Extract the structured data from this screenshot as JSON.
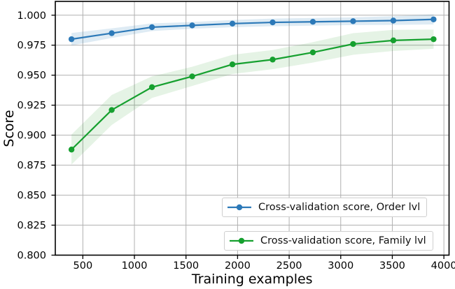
{
  "chart_data": {
    "type": "line",
    "title": "",
    "xlabel": "Training examples",
    "ylabel": "Score",
    "xlim": [
      233,
      4050
    ],
    "ylim": [
      0.8,
      1.0115
    ],
    "grid": true,
    "legend_position": "lower right, two stacked boxes",
    "x": [
      390,
      780,
      1170,
      1560,
      1950,
      2340,
      2730,
      3120,
      3510,
      3900
    ],
    "x_ticks": [
      {
        "value": 500,
        "label": "500"
      },
      {
        "value": 1000,
        "label": "1000"
      },
      {
        "value": 1500,
        "label": "1500"
      },
      {
        "value": 2000,
        "label": "2000"
      },
      {
        "value": 2500,
        "label": "2500"
      },
      {
        "value": 3000,
        "label": "3000"
      },
      {
        "value": 3500,
        "label": "3500"
      },
      {
        "value": 4000,
        "label": "4000"
      }
    ],
    "y_ticks": [
      {
        "value": 0.8,
        "label": "0.800"
      },
      {
        "value": 0.825,
        "label": "0.825"
      },
      {
        "value": 0.85,
        "label": "0.850"
      },
      {
        "value": 0.875,
        "label": "0.875"
      },
      {
        "value": 0.9,
        "label": "0.900"
      },
      {
        "value": 0.925,
        "label": "0.925"
      },
      {
        "value": 0.95,
        "label": "0.950"
      },
      {
        "value": 0.975,
        "label": "0.975"
      },
      {
        "value": 1.0,
        "label": "1.000"
      }
    ],
    "series": [
      {
        "name": "Cross-validation score, Order lvl",
        "color": "#2c79b8",
        "band_color": "#1f77b4",
        "band_opacity": 0.15,
        "marker": "circle",
        "values": [
          0.98,
          0.985,
          0.99,
          0.9915,
          0.993,
          0.994,
          0.9945,
          0.995,
          0.9955,
          0.9965
        ],
        "band_half_width": [
          0.0052,
          0.004,
          0.0032,
          0.0028,
          0.003,
          0.0032,
          0.0032,
          0.0032,
          0.0036,
          0.0042
        ]
      },
      {
        "name": "Cross-validation score, Family lvl",
        "color": "#16a02f",
        "band_color": "#2ca02c",
        "band_opacity": 0.12,
        "marker": "circle",
        "values": [
          0.888,
          0.921,
          0.94,
          0.949,
          0.959,
          0.963,
          0.969,
          0.976,
          0.979,
          0.98
        ],
        "band_half_width": [
          0.0125,
          0.0125,
          0.009,
          0.008,
          0.008,
          0.008,
          0.0085,
          0.009,
          0.0088,
          0.008
        ]
      }
    ]
  }
}
